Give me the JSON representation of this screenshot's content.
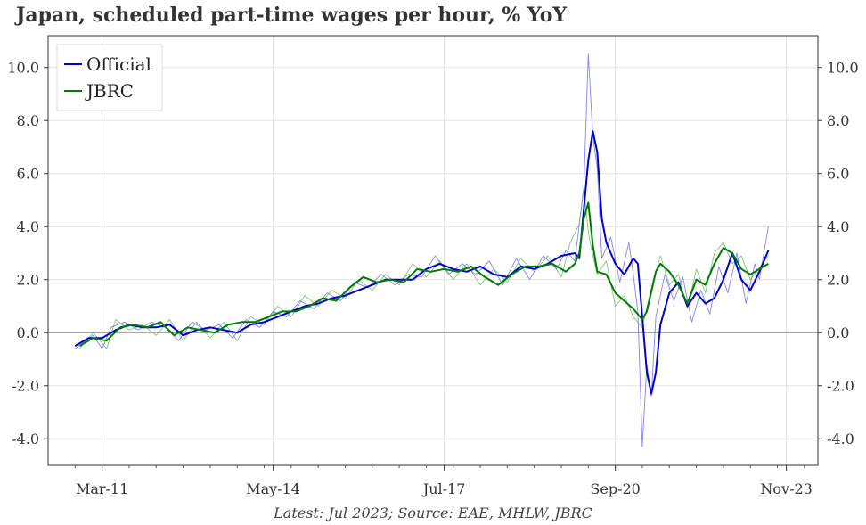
{
  "chart_data": {
    "type": "line",
    "title": "Japan, scheduled part-time wages per hour, % YoY",
    "footnote": "Latest: Jul 2023; Source: EAE, MHLW, JBRC",
    "xlabel": "",
    "ylabel": "",
    "x_ticks": [
      "Mar-11",
      "May-14",
      "Jul-17",
      "Sep-20",
      "Nov-23"
    ],
    "x_range": [
      "2010-03",
      "2024-06"
    ],
    "y_ticks": [
      "-4.0",
      "-2.0",
      "0.0",
      "2.0",
      "4.0",
      "6.0",
      "8.0",
      "10.0"
    ],
    "ylim": [
      -5.0,
      11.2
    ],
    "grid": true,
    "legend_position": "top-left",
    "series": [
      {
        "name": "Official",
        "color": "#0000cc",
        "points": [
          [
            "2010-09",
            -0.5
          ],
          [
            "2010-12",
            -0.2
          ],
          [
            "2011-03",
            -0.2
          ],
          [
            "2011-06",
            0.1
          ],
          [
            "2011-09",
            0.3
          ],
          [
            "2011-12",
            0.2
          ],
          [
            "2012-03",
            0.2
          ],
          [
            "2012-06",
            0.3
          ],
          [
            "2012-09",
            -0.1
          ],
          [
            "2012-12",
            0.1
          ],
          [
            "2013-03",
            0.2
          ],
          [
            "2013-06",
            0.1
          ],
          [
            "2013-09",
            0.0
          ],
          [
            "2013-12",
            0.3
          ],
          [
            "2014-03",
            0.4
          ],
          [
            "2014-06",
            0.6
          ],
          [
            "2014-09",
            0.8
          ],
          [
            "2014-12",
            1.0
          ],
          [
            "2015-03",
            1.1
          ],
          [
            "2015-06",
            1.3
          ],
          [
            "2015-09",
            1.4
          ],
          [
            "2015-12",
            1.6
          ],
          [
            "2016-03",
            1.8
          ],
          [
            "2016-06",
            2.0
          ],
          [
            "2016-09",
            2.0
          ],
          [
            "2016-12",
            2.0
          ],
          [
            "2017-03",
            2.4
          ],
          [
            "2017-06",
            2.6
          ],
          [
            "2017-09",
            2.4
          ],
          [
            "2017-12",
            2.3
          ],
          [
            "2018-03",
            2.5
          ],
          [
            "2018-06",
            2.2
          ],
          [
            "2018-09",
            2.1
          ],
          [
            "2018-12",
            2.5
          ],
          [
            "2019-03",
            2.4
          ],
          [
            "2019-06",
            2.6
          ],
          [
            "2019-09",
            2.9
          ],
          [
            "2019-12",
            3.0
          ],
          [
            "2020-01",
            2.8
          ],
          [
            "2020-03",
            6.5
          ],
          [
            "2020-04",
            7.6
          ],
          [
            "2020-05",
            6.8
          ],
          [
            "2020-06",
            4.3
          ],
          [
            "2020-07",
            3.4
          ],
          [
            "2020-09",
            2.6
          ],
          [
            "2020-11",
            2.2
          ],
          [
            "2021-01",
            2.8
          ],
          [
            "2021-02",
            2.6
          ],
          [
            "2021-03",
            0.6
          ],
          [
            "2021-04",
            -1.5
          ],
          [
            "2021-05",
            -2.3
          ],
          [
            "2021-06",
            -1.5
          ],
          [
            "2021-07",
            0.3
          ],
          [
            "2021-09",
            1.5
          ],
          [
            "2021-11",
            1.9
          ],
          [
            "2022-01",
            1.0
          ],
          [
            "2022-03",
            1.5
          ],
          [
            "2022-05",
            1.1
          ],
          [
            "2022-07",
            1.3
          ],
          [
            "2022-09",
            2.0
          ],
          [
            "2022-11",
            3.0
          ],
          [
            "2023-01",
            2.0
          ],
          [
            "2023-03",
            1.6
          ],
          [
            "2023-05",
            2.3
          ],
          [
            "2023-07",
            3.1
          ]
        ]
      },
      {
        "name": "JBRC",
        "color": "#007a00",
        "points": [
          [
            "2010-10",
            -0.5
          ],
          [
            "2011-01",
            -0.2
          ],
          [
            "2011-04",
            -0.3
          ],
          [
            "2011-07",
            0.2
          ],
          [
            "2011-10",
            0.3
          ],
          [
            "2012-01",
            0.2
          ],
          [
            "2012-04",
            0.4
          ],
          [
            "2012-07",
            -0.1
          ],
          [
            "2012-10",
            0.2
          ],
          [
            "2013-01",
            0.1
          ],
          [
            "2013-04",
            0.0
          ],
          [
            "2013-07",
            0.3
          ],
          [
            "2013-10",
            0.4
          ],
          [
            "2014-01",
            0.4
          ],
          [
            "2014-04",
            0.6
          ],
          [
            "2014-07",
            0.8
          ],
          [
            "2014-10",
            0.8
          ],
          [
            "2015-01",
            1.0
          ],
          [
            "2015-04",
            1.3
          ],
          [
            "2015-07",
            1.2
          ],
          [
            "2015-10",
            1.7
          ],
          [
            "2016-01",
            2.1
          ],
          [
            "2016-04",
            1.9
          ],
          [
            "2016-07",
            2.0
          ],
          [
            "2016-10",
            1.9
          ],
          [
            "2017-01",
            2.4
          ],
          [
            "2017-04",
            2.3
          ],
          [
            "2017-07",
            2.4
          ],
          [
            "2017-10",
            2.3
          ],
          [
            "2018-01",
            2.5
          ],
          [
            "2018-04",
            2.1
          ],
          [
            "2018-07",
            1.8
          ],
          [
            "2018-10",
            2.2
          ],
          [
            "2019-01",
            2.5
          ],
          [
            "2019-04",
            2.5
          ],
          [
            "2019-07",
            2.6
          ],
          [
            "2019-10",
            2.3
          ],
          [
            "2019-12",
            2.6
          ],
          [
            "2020-01",
            3.0
          ],
          [
            "2020-02",
            4.3
          ],
          [
            "2020-03",
            4.9
          ],
          [
            "2020-04",
            3.3
          ],
          [
            "2020-05",
            2.3
          ],
          [
            "2020-07",
            2.2
          ],
          [
            "2020-09",
            1.5
          ],
          [
            "2020-11",
            1.2
          ],
          [
            "2021-01",
            0.9
          ],
          [
            "2021-03",
            0.5
          ],
          [
            "2021-04",
            0.8
          ],
          [
            "2021-06",
            2.3
          ],
          [
            "2021-07",
            2.6
          ],
          [
            "2021-09",
            2.3
          ],
          [
            "2021-11",
            1.8
          ],
          [
            "2022-01",
            1.1
          ],
          [
            "2022-03",
            2.0
          ],
          [
            "2022-05",
            1.8
          ],
          [
            "2022-07",
            2.6
          ],
          [
            "2022-09",
            3.2
          ],
          [
            "2022-11",
            3.0
          ],
          [
            "2023-01",
            2.4
          ],
          [
            "2023-03",
            2.2
          ],
          [
            "2023-07",
            2.6
          ]
        ]
      },
      {
        "name": "",
        "color": "#5a5aff",
        "points": [
          [
            "2010-09",
            -0.6
          ],
          [
            "2011-01",
            -0.1
          ],
          [
            "2011-03",
            -0.6
          ],
          [
            "2011-05",
            0.2
          ],
          [
            "2011-08",
            0.4
          ],
          [
            "2011-11",
            0.1
          ],
          [
            "2012-02",
            0.4
          ],
          [
            "2012-05",
            0.2
          ],
          [
            "2012-08",
            -0.3
          ],
          [
            "2012-11",
            0.4
          ],
          [
            "2013-02",
            0.1
          ],
          [
            "2013-05",
            0.3
          ],
          [
            "2013-08",
            -0.2
          ],
          [
            "2013-11",
            0.5
          ],
          [
            "2014-02",
            0.2
          ],
          [
            "2014-05",
            0.8
          ],
          [
            "2014-08",
            0.6
          ],
          [
            "2014-11",
            1.2
          ],
          [
            "2015-02",
            0.9
          ],
          [
            "2015-05",
            1.5
          ],
          [
            "2015-08",
            1.2
          ],
          [
            "2015-11",
            1.9
          ],
          [
            "2016-02",
            1.7
          ],
          [
            "2016-05",
            2.2
          ],
          [
            "2016-08",
            1.8
          ],
          [
            "2016-11",
            2.2
          ],
          [
            "2017-02",
            2.1
          ],
          [
            "2017-05",
            2.9
          ],
          [
            "2017-08",
            2.2
          ],
          [
            "2017-11",
            2.6
          ],
          [
            "2018-02",
            2.2
          ],
          [
            "2018-05",
            2.7
          ],
          [
            "2018-08",
            1.8
          ],
          [
            "2018-11",
            2.8
          ],
          [
            "2019-02",
            2.0
          ],
          [
            "2019-05",
            2.9
          ],
          [
            "2019-08",
            2.4
          ],
          [
            "2019-10",
            3.1
          ],
          [
            "2019-12",
            2.7
          ],
          [
            "2020-02",
            5.5
          ],
          [
            "2020-03",
            10.5
          ],
          [
            "2020-04",
            7.4
          ],
          [
            "2020-05",
            6.2
          ],
          [
            "2020-06",
            2.8
          ],
          [
            "2020-08",
            3.6
          ],
          [
            "2020-10",
            1.9
          ],
          [
            "2020-12",
            3.4
          ],
          [
            "2021-01",
            2.2
          ],
          [
            "2021-02",
            0.8
          ],
          [
            "2021-03",
            -4.3
          ],
          [
            "2021-04",
            -1.2
          ],
          [
            "2021-05",
            -2.4
          ],
          [
            "2021-06",
            0.6
          ],
          [
            "2021-08",
            2.2
          ],
          [
            "2021-10",
            1.2
          ],
          [
            "2021-12",
            2.1
          ],
          [
            "2022-02",
            0.4
          ],
          [
            "2022-04",
            1.6
          ],
          [
            "2022-06",
            0.7
          ],
          [
            "2022-08",
            2.5
          ],
          [
            "2022-10",
            1.5
          ],
          [
            "2022-12",
            3.0
          ],
          [
            "2023-02",
            1.1
          ],
          [
            "2023-04",
            2.6
          ],
          [
            "2023-05",
            2.0
          ],
          [
            "2023-07",
            4.0
          ]
        ]
      },
      {
        "name": "",
        "color": "#55b055",
        "points": [
          [
            "2010-10",
            -0.6
          ],
          [
            "2011-01",
            0.0
          ],
          [
            "2011-04",
            -0.6
          ],
          [
            "2011-06",
            0.5
          ],
          [
            "2011-09",
            0.1
          ],
          [
            "2011-12",
            0.3
          ],
          [
            "2012-03",
            -0.1
          ],
          [
            "2012-06",
            0.5
          ],
          [
            "2012-09",
            -0.3
          ],
          [
            "2012-12",
            0.4
          ],
          [
            "2013-03",
            -0.2
          ],
          [
            "2013-06",
            0.4
          ],
          [
            "2013-09",
            -0.3
          ],
          [
            "2013-12",
            0.6
          ],
          [
            "2014-03",
            0.3
          ],
          [
            "2014-06",
            1.0
          ],
          [
            "2014-09",
            0.6
          ],
          [
            "2014-12",
            1.4
          ],
          [
            "2015-03",
            1.0
          ],
          [
            "2015-06",
            1.6
          ],
          [
            "2015-09",
            1.3
          ],
          [
            "2015-12",
            2.0
          ],
          [
            "2016-03",
            1.6
          ],
          [
            "2016-06",
            2.2
          ],
          [
            "2016-09",
            1.8
          ],
          [
            "2016-12",
            2.6
          ],
          [
            "2017-03",
            2.1
          ],
          [
            "2017-06",
            2.7
          ],
          [
            "2017-09",
            2.0
          ],
          [
            "2017-12",
            2.6
          ],
          [
            "2018-03",
            1.8
          ],
          [
            "2018-06",
            2.4
          ],
          [
            "2018-09",
            1.9
          ],
          [
            "2018-12",
            2.8
          ],
          [
            "2019-03",
            2.3
          ],
          [
            "2019-06",
            2.9
          ],
          [
            "2019-09",
            2.1
          ],
          [
            "2019-11",
            3.4
          ],
          [
            "2020-01",
            4.1
          ],
          [
            "2020-02",
            5.4
          ],
          [
            "2020-03",
            3.8
          ],
          [
            "2020-04",
            2.9
          ],
          [
            "2020-05",
            2.2
          ],
          [
            "2020-07",
            2.7
          ],
          [
            "2020-09",
            1.0
          ],
          [
            "2020-11",
            1.4
          ],
          [
            "2021-01",
            0.6
          ],
          [
            "2021-03",
            0.2
          ],
          [
            "2021-05",
            1.7
          ],
          [
            "2021-07",
            2.9
          ],
          [
            "2021-09",
            1.8
          ],
          [
            "2021-11",
            2.2
          ],
          [
            "2022-01",
            0.9
          ],
          [
            "2022-03",
            2.4
          ],
          [
            "2022-05",
            1.5
          ],
          [
            "2022-07",
            3.0
          ],
          [
            "2022-09",
            3.4
          ],
          [
            "2022-11",
            2.6
          ],
          [
            "2023-01",
            2.9
          ],
          [
            "2023-03",
            2.0
          ],
          [
            "2023-07",
            2.9
          ]
        ]
      }
    ]
  },
  "legend": [
    {
      "label": "Official",
      "color": "#0000cc"
    },
    {
      "label": "JBRC",
      "color": "#007a00"
    }
  ]
}
